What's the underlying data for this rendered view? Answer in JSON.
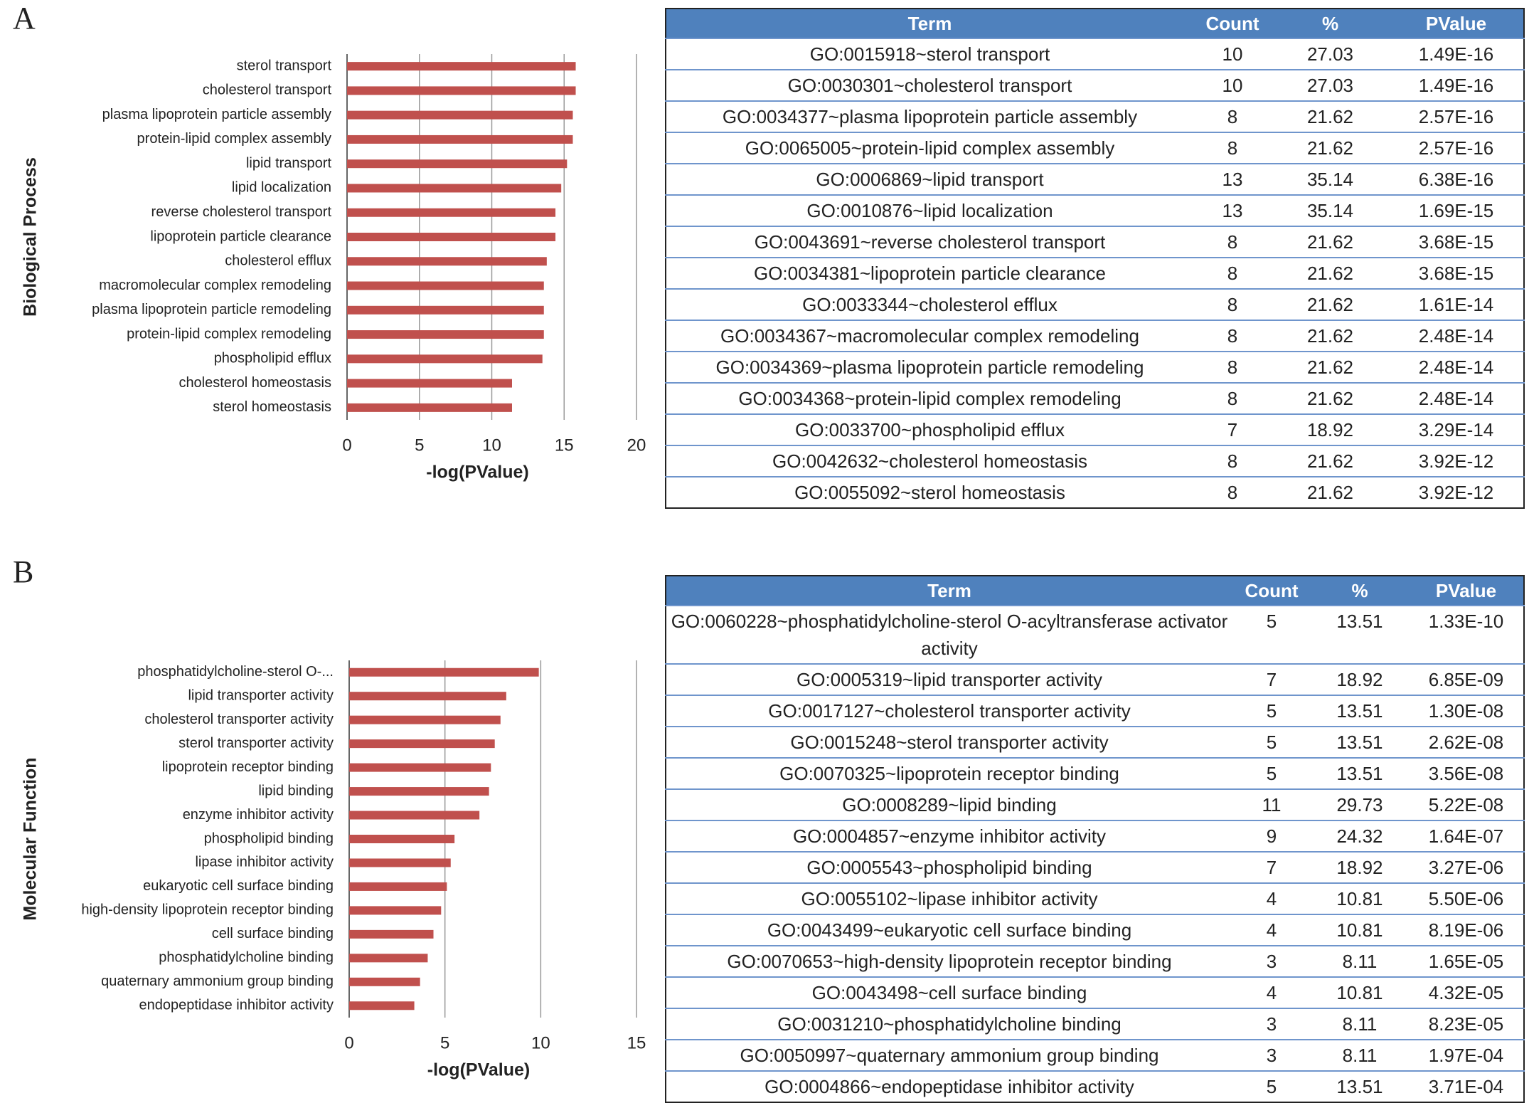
{
  "panel_labels": [
    "A",
    "B"
  ],
  "chart_data": [
    {
      "type": "bar",
      "orientation": "horizontal",
      "y_label": "Biological Process",
      "x_label": "-log(PValue)",
      "color": "#c0504d",
      "grid": true,
      "categories": [
        "sterol transport",
        "cholesterol transport",
        "plasma lipoprotein particle assembly",
        "protein-lipid complex assembly",
        "lipid transport",
        "lipid localization",
        "reverse cholesterol transport",
        "lipoprotein particle clearance",
        "cholesterol efflux",
        "macromolecular complex remodeling",
        "plasma lipoprotein particle remodeling",
        "protein-lipid complex remodeling",
        "phospholipid efflux",
        "cholesterol homeostasis",
        "sterol homeostasis"
      ],
      "values": [
        15.8,
        15.8,
        15.6,
        15.6,
        15.2,
        14.8,
        14.4,
        14.4,
        13.8,
        13.6,
        13.6,
        13.6,
        13.5,
        11.4,
        11.4
      ],
      "xlim": [
        0,
        20
      ],
      "xticks": [
        0,
        5,
        10,
        15,
        20
      ]
    },
    {
      "type": "bar",
      "orientation": "horizontal",
      "y_label": "Molecular Function",
      "x_label": "-log(PValue)",
      "color": "#c0504d",
      "grid": true,
      "categories": [
        "phosphatidylcholine-sterol O-...",
        "lipid transporter activity",
        "cholesterol transporter activity",
        "sterol transporter activity",
        "lipoprotein receptor binding",
        "lipid binding",
        "enzyme inhibitor activity",
        "phospholipid binding",
        "lipase inhibitor activity",
        "eukaryotic cell surface binding",
        "high-density lipoprotein receptor binding",
        "cell surface binding",
        "phosphatidylcholine binding",
        "quaternary ammonium group binding",
        "endopeptidase inhibitor activity"
      ],
      "values": [
        9.9,
        8.2,
        7.9,
        7.6,
        7.4,
        7.3,
        6.8,
        5.5,
        5.3,
        5.1,
        4.8,
        4.4,
        4.1,
        3.7,
        3.4
      ],
      "xlim": [
        0,
        15
      ],
      "xticks": [
        0,
        5,
        10,
        15
      ]
    }
  ],
  "tables": [
    {
      "header": [
        "Term",
        "Count",
        "%",
        "PValue"
      ],
      "rows": [
        [
          "GO:0015918~sterol transport",
          "10",
          "27.03",
          "1.49E-16"
        ],
        [
          "GO:0030301~cholesterol transport",
          "10",
          "27.03",
          "1.49E-16"
        ],
        [
          "GO:0034377~plasma lipoprotein particle assembly",
          "8",
          "21.62",
          "2.57E-16"
        ],
        [
          "GO:0065005~protein-lipid complex assembly",
          "8",
          "21.62",
          "2.57E-16"
        ],
        [
          "GO:0006869~lipid transport",
          "13",
          "35.14",
          "6.38E-16"
        ],
        [
          "GO:0010876~lipid localization",
          "13",
          "35.14",
          "1.69E-15"
        ],
        [
          "GO:0043691~reverse cholesterol transport",
          "8",
          "21.62",
          "3.68E-15"
        ],
        [
          "GO:0034381~lipoprotein particle clearance",
          "8",
          "21.62",
          "3.68E-15"
        ],
        [
          "GO:0033344~cholesterol efflux",
          "8",
          "21.62",
          "1.61E-14"
        ],
        [
          "GO:0034367~macromolecular complex remodeling",
          "8",
          "21.62",
          "2.48E-14"
        ],
        [
          "GO:0034369~plasma lipoprotein particle remodeling",
          "8",
          "21.62",
          "2.48E-14"
        ],
        [
          "GO:0034368~protein-lipid complex remodeling",
          "8",
          "21.62",
          "2.48E-14"
        ],
        [
          "GO:0033700~phospholipid efflux",
          "7",
          "18.92",
          "3.29E-14"
        ],
        [
          "GO:0042632~cholesterol homeostasis",
          "8",
          "21.62",
          "3.92E-12"
        ],
        [
          "GO:0055092~sterol homeostasis",
          "8",
          "21.62",
          "3.92E-12"
        ]
      ]
    },
    {
      "header": [
        "Term",
        "Count",
        "%",
        "PValue"
      ],
      "rows": [
        [
          "GO:0060228~phosphatidylcholine-sterol O-acyltransferase activator activity",
          "5",
          "13.51",
          "1.33E-10"
        ],
        [
          "GO:0005319~lipid transporter activity",
          "7",
          "18.92",
          "6.85E-09"
        ],
        [
          "GO:0017127~cholesterol transporter activity",
          "5",
          "13.51",
          "1.30E-08"
        ],
        [
          "GO:0015248~sterol transporter activity",
          "5",
          "13.51",
          "2.62E-08"
        ],
        [
          "GO:0070325~lipoprotein receptor binding",
          "5",
          "13.51",
          "3.56E-08"
        ],
        [
          "GO:0008289~lipid binding",
          "11",
          "29.73",
          "5.22E-08"
        ],
        [
          "GO:0004857~enzyme inhibitor activity",
          "9",
          "24.32",
          "1.64E-07"
        ],
        [
          "GO:0005543~phospholipid binding",
          "7",
          "18.92",
          "3.27E-06"
        ],
        [
          "GO:0055102~lipase inhibitor activity",
          "4",
          "10.81",
          "5.50E-06"
        ],
        [
          "GO:0043499~eukaryotic cell surface binding",
          "4",
          "10.81",
          "8.19E-06"
        ],
        [
          "GO:0070653~high-density lipoprotein receptor binding",
          "3",
          "8.11",
          "1.65E-05"
        ],
        [
          "GO:0043498~cell surface binding",
          "4",
          "10.81",
          "4.32E-05"
        ],
        [
          "GO:0031210~phosphatidylcholine binding",
          "3",
          "8.11",
          "8.23E-05"
        ],
        [
          "GO:0050997~quaternary ammonium group binding",
          "3",
          "8.11",
          "1.97E-04"
        ],
        [
          "GO:0004866~endopeptidase inhibitor activity",
          "5",
          "13.51",
          "3.71E-04"
        ]
      ]
    }
  ]
}
